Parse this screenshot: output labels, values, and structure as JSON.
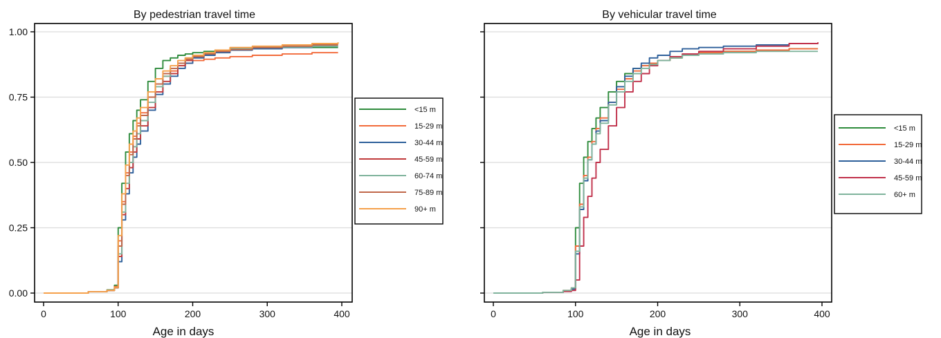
{
  "chart_data": [
    {
      "type": "line",
      "title": "By pedestrian travel time",
      "xlabel": "Age in days",
      "ylabel": "",
      "xlim": [
        0,
        400
      ],
      "ylim": [
        0,
        1
      ],
      "xticks": [
        0,
        100,
        200,
        300,
        400
      ],
      "yticks": [
        0.0,
        0.25,
        0.5,
        0.75,
        1.0
      ],
      "xtick_labels": [
        "0",
        "100",
        "200",
        "300",
        "400"
      ],
      "ytick_labels": [
        "0.00",
        "0.25",
        "0.50",
        "0.75",
        "1.00"
      ],
      "grid": "horizontal",
      "legend_position": "right",
      "series": [
        {
          "name": "<15 m",
          "color": "#2e8b3c",
          "x": [
            0,
            60,
            85,
            95,
            100,
            105,
            110,
            115,
            120,
            125,
            130,
            140,
            150,
            160,
            170,
            180,
            190,
            200,
            215,
            230,
            250,
            280,
            320,
            360,
            395
          ],
          "y": [
            0,
            0.005,
            0.012,
            0.03,
            0.25,
            0.42,
            0.54,
            0.61,
            0.66,
            0.7,
            0.74,
            0.81,
            0.86,
            0.89,
            0.9,
            0.91,
            0.915,
            0.92,
            0.925,
            0.93,
            0.935,
            0.938,
            0.94,
            0.94,
            0.94
          ]
        },
        {
          "name": "15-29 m",
          "color": "#f26a3a",
          "x": [
            0,
            60,
            85,
            95,
            100,
            105,
            110,
            115,
            120,
            125,
            130,
            140,
            150,
            160,
            170,
            180,
            190,
            200,
            215,
            230,
            250,
            280,
            320,
            360,
            395
          ],
          "y": [
            0,
            0.005,
            0.01,
            0.025,
            0.2,
            0.35,
            0.46,
            0.54,
            0.6,
            0.65,
            0.69,
            0.75,
            0.8,
            0.83,
            0.85,
            0.87,
            0.88,
            0.89,
            0.895,
            0.9,
            0.905,
            0.91,
            0.915,
            0.92,
            0.92
          ]
        },
        {
          "name": "30-44 m",
          "color": "#2d5f9a",
          "x": [
            0,
            60,
            85,
            95,
            100,
            105,
            110,
            115,
            120,
            125,
            130,
            140,
            150,
            160,
            170,
            180,
            190,
            200,
            215,
            230,
            250,
            280,
            320,
            360,
            395
          ],
          "y": [
            0,
            0.005,
            0.01,
            0.02,
            0.12,
            0.28,
            0.38,
            0.46,
            0.52,
            0.57,
            0.62,
            0.7,
            0.76,
            0.8,
            0.83,
            0.86,
            0.88,
            0.9,
            0.91,
            0.92,
            0.93,
            0.935,
            0.94,
            0.945,
            0.945
          ]
        },
        {
          "name": "45-59 m",
          "color": "#c0393b",
          "x": [
            0,
            60,
            85,
            95,
            100,
            105,
            110,
            115,
            120,
            125,
            130,
            140,
            150,
            160,
            170,
            180,
            190,
            200,
            215,
            230,
            250,
            280,
            320,
            360,
            395
          ],
          "y": [
            0,
            0.005,
            0.01,
            0.02,
            0.14,
            0.3,
            0.4,
            0.48,
            0.54,
            0.59,
            0.64,
            0.71,
            0.77,
            0.81,
            0.84,
            0.87,
            0.89,
            0.905,
            0.915,
            0.925,
            0.935,
            0.94,
            0.945,
            0.95,
            0.95
          ]
        },
        {
          "name": "60-74 m",
          "color": "#7fb39c",
          "x": [
            0,
            60,
            85,
            95,
            100,
            105,
            110,
            115,
            120,
            125,
            130,
            140,
            150,
            160,
            170,
            180,
            190,
            200,
            215,
            230,
            250,
            280,
            320,
            360,
            395
          ],
          "y": [
            0,
            0.005,
            0.01,
            0.02,
            0.15,
            0.31,
            0.42,
            0.5,
            0.56,
            0.61,
            0.66,
            0.73,
            0.79,
            0.83,
            0.86,
            0.88,
            0.9,
            0.91,
            0.92,
            0.928,
            0.935,
            0.94,
            0.942,
            0.945,
            0.945
          ]
        },
        {
          "name": "75-89 m",
          "color": "#c0674a",
          "x": [
            0,
            60,
            85,
            95,
            100,
            105,
            110,
            115,
            120,
            125,
            130,
            140,
            150,
            160,
            170,
            180,
            190,
            200,
            215,
            230,
            250,
            280,
            320,
            360,
            395
          ],
          "y": [
            0,
            0.005,
            0.01,
            0.02,
            0.18,
            0.34,
            0.45,
            0.53,
            0.59,
            0.64,
            0.68,
            0.75,
            0.8,
            0.84,
            0.86,
            0.88,
            0.895,
            0.905,
            0.915,
            0.925,
            0.932,
            0.94,
            0.945,
            0.95,
            0.95
          ]
        },
        {
          "name": "90+ m",
          "color": "#f5a04a",
          "x": [
            0,
            60,
            85,
            95,
            100,
            105,
            110,
            115,
            120,
            125,
            130,
            140,
            150,
            160,
            170,
            180,
            190,
            200,
            215,
            230,
            250,
            280,
            320,
            360,
            395
          ],
          "y": [
            0,
            0.005,
            0.01,
            0.022,
            0.22,
            0.38,
            0.49,
            0.57,
            0.62,
            0.67,
            0.71,
            0.77,
            0.82,
            0.85,
            0.87,
            0.89,
            0.9,
            0.91,
            0.92,
            0.93,
            0.94,
            0.945,
            0.95,
            0.955,
            0.96
          ]
        }
      ]
    },
    {
      "type": "line",
      "title": "By vehicular travel time",
      "xlabel": "Age in days",
      "ylabel": "",
      "xlim": [
        0,
        400
      ],
      "ylim": [
        0,
        1
      ],
      "xticks": [
        0,
        100,
        200,
        300,
        400
      ],
      "yticks": [
        0.0,
        0.25,
        0.5,
        0.75,
        1.0
      ],
      "xtick_labels": [
        "0",
        "100",
        "200",
        "300",
        "400"
      ],
      "ytick_labels": [],
      "grid": "horizontal",
      "legend_position": "right",
      "series": [
        {
          "name": "<15 m",
          "color": "#2e8b3c",
          "x": [
            0,
            60,
            85,
            95,
            100,
            105,
            110,
            115,
            120,
            125,
            130,
            140,
            150,
            160,
            170,
            180,
            190,
            200,
            215,
            230,
            250,
            280,
            320,
            360,
            395
          ],
          "y": [
            0,
            0.003,
            0.008,
            0.02,
            0.25,
            0.42,
            0.52,
            0.58,
            0.63,
            0.67,
            0.71,
            0.77,
            0.81,
            0.84,
            0.86,
            0.87,
            0.88,
            0.89,
            0.9,
            0.91,
            0.92,
            0.925,
            0.93,
            0.935,
            0.935
          ]
        },
        {
          "name": "15-29 m",
          "color": "#f26a3a",
          "x": [
            0,
            60,
            85,
            95,
            100,
            105,
            110,
            115,
            120,
            125,
            130,
            140,
            150,
            160,
            170,
            180,
            190,
            200,
            215,
            230,
            250,
            280,
            320,
            360,
            395
          ],
          "y": [
            0,
            0.003,
            0.01,
            0.02,
            0.18,
            0.34,
            0.45,
            0.52,
            0.58,
            0.63,
            0.67,
            0.73,
            0.78,
            0.82,
            0.85,
            0.87,
            0.88,
            0.89,
            0.9,
            0.91,
            0.92,
            0.925,
            0.93,
            0.935,
            0.935
          ]
        },
        {
          "name": "30-44 m",
          "color": "#2d5f9a",
          "x": [
            0,
            60,
            85,
            95,
            100,
            105,
            110,
            115,
            120,
            125,
            130,
            140,
            150,
            160,
            170,
            180,
            190,
            200,
            215,
            230,
            250,
            280,
            320,
            360,
            395
          ],
          "y": [
            0,
            0.003,
            0.008,
            0.015,
            0.15,
            0.32,
            0.43,
            0.51,
            0.57,
            0.62,
            0.66,
            0.73,
            0.79,
            0.83,
            0.86,
            0.88,
            0.9,
            0.91,
            0.925,
            0.935,
            0.94,
            0.945,
            0.95,
            0.955,
            0.955
          ]
        },
        {
          "name": "45-59 m",
          "color": "#c0304a",
          "x": [
            0,
            60,
            85,
            95,
            100,
            105,
            110,
            115,
            120,
            125,
            130,
            140,
            150,
            160,
            170,
            180,
            190,
            200,
            215,
            230,
            250,
            280,
            320,
            360,
            395
          ],
          "y": [
            0,
            0.003,
            0.006,
            0.01,
            0.05,
            0.18,
            0.29,
            0.37,
            0.44,
            0.5,
            0.55,
            0.64,
            0.71,
            0.77,
            0.81,
            0.84,
            0.87,
            0.89,
            0.905,
            0.915,
            0.925,
            0.935,
            0.945,
            0.955,
            0.96
          ]
        },
        {
          "name": "60+ m",
          "color": "#7fb39c",
          "x": [
            0,
            60,
            85,
            95,
            100,
            105,
            110,
            115,
            120,
            125,
            130,
            140,
            150,
            160,
            170,
            180,
            190,
            200,
            215,
            230,
            250,
            280,
            320,
            360,
            395
          ],
          "y": [
            0,
            0.003,
            0.01,
            0.02,
            0.16,
            0.33,
            0.44,
            0.51,
            0.57,
            0.61,
            0.65,
            0.72,
            0.77,
            0.81,
            0.84,
            0.86,
            0.875,
            0.89,
            0.9,
            0.91,
            0.915,
            0.92,
            0.925,
            0.925,
            0.925
          ]
        }
      ]
    }
  ]
}
